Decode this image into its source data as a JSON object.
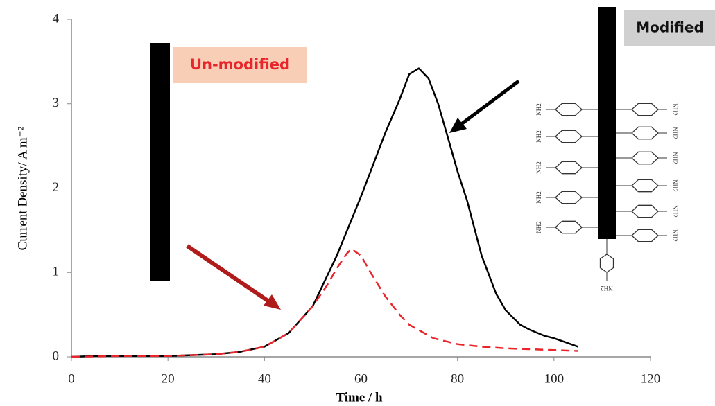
{
  "chart_data": {
    "type": "line",
    "xlabel": "Time / h",
    "ylabel": "Current Density/ A m⁻²",
    "xlim": [
      0,
      120
    ],
    "xticks": [
      0,
      20,
      40,
      60,
      80,
      100,
      120
    ],
    "ylim": [
      0,
      4
    ],
    "yticks": [
      0,
      1,
      2,
      3,
      4
    ],
    "grid": false,
    "series": [
      {
        "name": "Modified",
        "color": "#000000",
        "dash": false,
        "x": [
          0,
          5,
          10,
          20,
          30,
          35,
          40,
          45,
          50,
          55,
          60,
          65,
          68,
          70,
          72,
          74,
          76,
          78,
          80,
          82,
          85,
          88,
          90,
          93,
          95,
          98,
          100,
          102,
          105
        ],
        "values": [
          0.0,
          0.01,
          0.01,
          0.01,
          0.03,
          0.06,
          0.12,
          0.28,
          0.6,
          1.2,
          1.9,
          2.65,
          3.05,
          3.35,
          3.42,
          3.3,
          3.0,
          2.6,
          2.2,
          1.85,
          1.2,
          0.75,
          0.55,
          0.38,
          0.32,
          0.25,
          0.22,
          0.18,
          0.12
        ]
      },
      {
        "name": "Un-modified",
        "color": "#e8252b",
        "dash": true,
        "x": [
          0,
          10,
          20,
          30,
          35,
          40,
          45,
          50,
          53,
          55,
          57,
          58,
          60,
          62,
          65,
          68,
          70,
          75,
          80,
          85,
          90,
          95,
          100,
          105
        ],
        "values": [
          0.0,
          0.01,
          0.01,
          0.03,
          0.06,
          0.12,
          0.28,
          0.6,
          0.85,
          1.05,
          1.22,
          1.28,
          1.2,
          1.0,
          0.72,
          0.5,
          0.38,
          0.22,
          0.15,
          0.12,
          0.1,
          0.09,
          0.08,
          0.07
        ]
      }
    ],
    "substituent": "NH2"
  }
}
